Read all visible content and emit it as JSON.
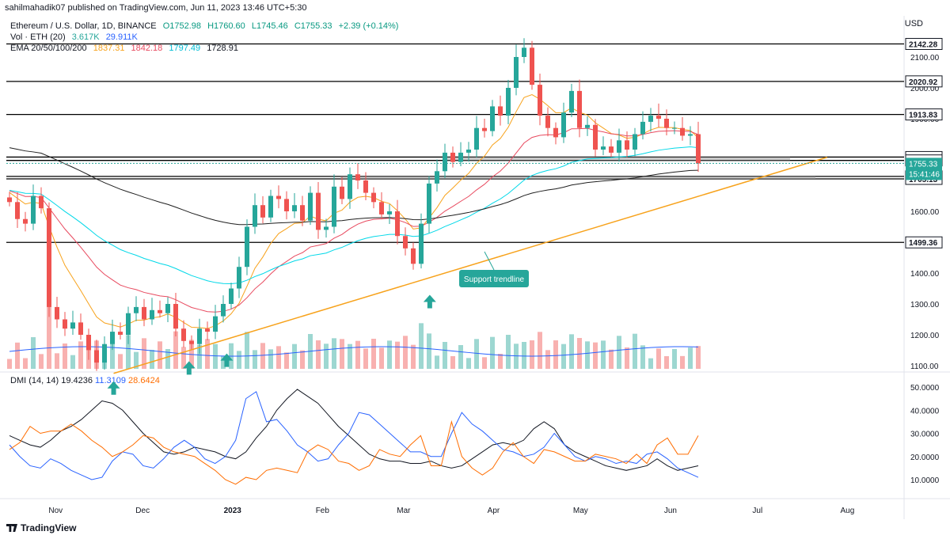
{
  "header": {
    "published": "sahilmahadik07 published on TradingView.com, Jun 11, 2023 13:46 UTC+5:30",
    "symbol": "Ethereum / U.S. Dollar, 1D, BINANCE",
    "o": "O1752.98",
    "h": "H1760.60",
    "l": "L1745.46",
    "c": "C1755.33",
    "change": "+2.39 (+0.14%)",
    "vol_label": "Vol · ETH (20)",
    "vol1": "3.617K",
    "vol2": "29.911K",
    "ema_label": "EMA 20/50/100/200",
    "ema20": "1837.31",
    "ema50": "1842.18",
    "ema100": "1797.49",
    "ema200": "1728.91",
    "currency": "USD"
  },
  "dmi_legend": {
    "label": "DMI (14, 14)",
    "adx": "19.4236",
    "plus_di": "11.3109",
    "minus_di": "28.6424"
  },
  "annotation": {
    "trendline_label": "Support trendline"
  },
  "footer": {
    "brand": "TradingView"
  },
  "colors": {
    "up": "#26a69a",
    "down": "#ef5350",
    "ema20": "#f7a21b",
    "ema50": "#e84a5f",
    "ema100": "#00d8e8",
    "ema200": "#1f1f1f",
    "trendline": "#f7a21b",
    "adx": "#131722",
    "plus_di": "#2962ff",
    "minus_di": "#ff6d00",
    "label_bg": "#26a69a"
  },
  "chart_data": [
    {
      "type": "candlestick",
      "title": "Ethereum / U.S. Dollar, 1D, BINANCE",
      "ylabel": "USD",
      "ylim": [
        1050,
        2170
      ],
      "y_ticks": [
        "2100.00",
        "2000.00",
        "1900.00",
        "1600.00",
        "1400.00",
        "1300.00",
        "1200.00",
        "1100.00"
      ],
      "x_tick_labels": [
        "Nov",
        "Dec",
        "2023",
        "Feb",
        "Mar",
        "Apr",
        "May",
        "Jun",
        "Jul",
        "Aug"
      ],
      "horizontal_levels": [
        {
          "label": "2142.28",
          "value": 2142.28
        },
        {
          "label": "2020.92",
          "value": 2020.92
        },
        {
          "label": "1913.83",
          "value": 1913.83
        },
        {
          "label": "1775.83",
          "value": 1775.83
        },
        {
          "label": "1764.87",
          "value": 1764.87
        },
        {
          "label": "1713.18",
          "value": 1713.18
        },
        {
          "label": "1705.13",
          "value": 1705.13
        },
        {
          "label": "1499.36",
          "value": 1499.36
        }
      ],
      "current_price": {
        "value": "1755.33",
        "countdown": "15:41:46"
      },
      "support_trendline": {
        "from": {
          "date": "2022-11-21",
          "price": 1075
        },
        "to": {
          "date": "2023-07-25",
          "price": 1775
        }
      },
      "support_arrows": [
        "2022-11-21",
        "2022-12-17",
        "2022-12-30",
        "2023-03-10"
      ],
      "closes_approx": [
        1630,
        1575,
        1560,
        1650,
        1610,
        1290,
        1250,
        1220,
        1240,
        1200,
        1150,
        1110,
        1170,
        1210,
        1200,
        1270,
        1290,
        1250,
        1280,
        1270,
        1300,
        1220,
        1180,
        1170,
        1220,
        1210,
        1260,
        1300,
        1350,
        1420,
        1550,
        1620,
        1580,
        1650,
        1640,
        1600,
        1620,
        1570,
        1660,
        1540,
        1550,
        1680,
        1640,
        1720,
        1700,
        1660,
        1630,
        1590,
        1600,
        1520,
        1480,
        1430,
        1560,
        1690,
        1730,
        1790,
        1760,
        1790,
        1800,
        1870,
        1860,
        1940,
        1910,
        2000,
        2100,
        2130,
        2010,
        1910,
        1870,
        1840,
        1920,
        1990,
        1870,
        1880,
        1800,
        1810,
        1790,
        1830,
        1800,
        1850,
        1890,
        1910,
        1900,
        1870,
        1870,
        1845,
        1850,
        1755
      ],
      "volume_note": "volume histogram with 20-period volume moving average (values not labeled)"
    },
    {
      "type": "line",
      "title": "DMI (14, 14)",
      "ylim": [
        5,
        52
      ],
      "y_ticks": [
        "50.0000",
        "40.0000",
        "30.0000",
        "20.0000",
        "10.0000"
      ],
      "series": [
        {
          "name": "ADX",
          "values": [
            29,
            27,
            25,
            24,
            27,
            31,
            33,
            36,
            40,
            44,
            43,
            40,
            35,
            30,
            26,
            22,
            21,
            22,
            24,
            23,
            22,
            20,
            19,
            22,
            28,
            33,
            40,
            45,
            49,
            46,
            43,
            38,
            33,
            29,
            25,
            21,
            19,
            18,
            18,
            17,
            17,
            18,
            16,
            15,
            16,
            19,
            22,
            25,
            26,
            25,
            27,
            32,
            35,
            32,
            25,
            22,
            20,
            18,
            16,
            15,
            14,
            15,
            16,
            19,
            16,
            14,
            15,
            16
          ]
        },
        {
          "name": "+DI",
          "values": [
            25,
            20,
            16,
            15,
            19,
            17,
            14,
            12,
            10,
            11,
            18,
            22,
            21,
            16,
            15,
            19,
            24,
            27,
            24,
            19,
            17,
            20,
            27,
            45,
            48,
            35,
            36,
            31,
            25,
            22,
            18,
            19,
            25,
            30,
            39,
            38,
            34,
            30,
            26,
            22,
            22,
            20,
            20,
            30,
            39,
            34,
            31,
            27,
            23,
            22,
            20,
            21,
            24,
            30,
            25,
            20,
            18,
            20,
            19,
            17,
            18,
            17,
            21,
            22,
            19,
            15,
            13,
            11
          ]
        },
        {
          "name": "-DI",
          "values": [
            23,
            26,
            33,
            30,
            31,
            31,
            34,
            31,
            27,
            24,
            20,
            22,
            25,
            29,
            28,
            24,
            22,
            21,
            20,
            17,
            14,
            10,
            8,
            11,
            10,
            14,
            15,
            14,
            13,
            22,
            25,
            23,
            18,
            17,
            14,
            16,
            23,
            21,
            20,
            25,
            29,
            16,
            16,
            35,
            20,
            15,
            12,
            15,
            22,
            26,
            20,
            17,
            23,
            22,
            20,
            18,
            18,
            21,
            20,
            19,
            17,
            21,
            17,
            25,
            28,
            21,
            21,
            29
          ]
        }
      ]
    }
  ]
}
